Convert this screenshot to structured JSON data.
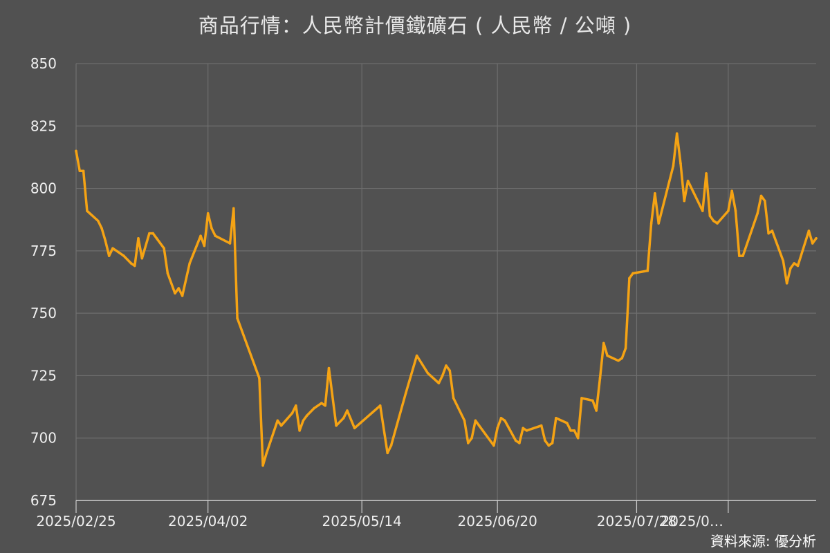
{
  "chart_data": {
    "type": "line",
    "title": "商品行情：人民幣計價鐵礦石 ( 人民幣 / 公噸 )",
    "source": "資料來源: 優分析",
    "ylim": [
      675,
      850
    ],
    "yticks": [
      675,
      700,
      725,
      750,
      775,
      800,
      825,
      850
    ],
    "xticks": [
      "2025/02/25",
      "2025/04/02",
      "2025/05/14",
      "2025/06/20",
      "2025/07/28",
      "2025/0…"
    ],
    "xtick_dates": [
      "2025-02-25",
      "2025-04-02",
      "2025-05-14",
      "2025-06-20",
      "2025-07-28",
      "2025-08-22"
    ],
    "grid": true,
    "line_color": "#f5a314",
    "series": [
      {
        "name": "",
        "points": [
          [
            "2025-02-25",
            815
          ],
          [
            "2025-02-26",
            807
          ],
          [
            "2025-02-27",
            807
          ],
          [
            "2025-02-28",
            791
          ],
          [
            "2025-03-03",
            787
          ],
          [
            "2025-03-04",
            784
          ],
          [
            "2025-03-05",
            779
          ],
          [
            "2025-03-06",
            773
          ],
          [
            "2025-03-07",
            776
          ],
          [
            "2025-03-10",
            773
          ],
          [
            "2025-03-12",
            770
          ],
          [
            "2025-03-13",
            769
          ],
          [
            "2025-03-14",
            780
          ],
          [
            "2025-03-15",
            772
          ],
          [
            "2025-03-17",
            782
          ],
          [
            "2025-03-18",
            782
          ],
          [
            "2025-03-19",
            780
          ],
          [
            "2025-03-21",
            776
          ],
          [
            "2025-03-22",
            766
          ],
          [
            "2025-03-24",
            758
          ],
          [
            "2025-03-25",
            760
          ],
          [
            "2025-03-26",
            757
          ],
          [
            "2025-03-28",
            770
          ],
          [
            "2025-03-31",
            781
          ],
          [
            "2025-04-01",
            777
          ],
          [
            "2025-04-02",
            790
          ],
          [
            "2025-04-03",
            784
          ],
          [
            "2025-04-04",
            781
          ],
          [
            "2025-04-08",
            778
          ],
          [
            "2025-04-09",
            792
          ],
          [
            "2025-04-10",
            748
          ],
          [
            "2025-04-16",
            724
          ],
          [
            "2025-04-17",
            689
          ],
          [
            "2025-04-18",
            694
          ],
          [
            "2025-04-21",
            707
          ],
          [
            "2025-04-22",
            705
          ],
          [
            "2025-04-25",
            710
          ],
          [
            "2025-04-26",
            713
          ],
          [
            "2025-04-27",
            703
          ],
          [
            "2025-04-28",
            707
          ],
          [
            "2025-04-29",
            709
          ],
          [
            "2025-05-01",
            712
          ],
          [
            "2025-05-03",
            714
          ],
          [
            "2025-05-04",
            713
          ],
          [
            "2025-05-05",
            728
          ],
          [
            "2025-05-07",
            705
          ],
          [
            "2025-05-09",
            708
          ],
          [
            "2025-05-10",
            711
          ],
          [
            "2025-05-12",
            704
          ],
          [
            "2025-05-19",
            713
          ],
          [
            "2025-05-21",
            694
          ],
          [
            "2025-05-22",
            697
          ],
          [
            "2025-05-26",
            718
          ],
          [
            "2025-05-29",
            733
          ],
          [
            "2025-06-01",
            726
          ],
          [
            "2025-06-04",
            722
          ],
          [
            "2025-06-05",
            725
          ],
          [
            "2025-06-06",
            729
          ],
          [
            "2025-06-07",
            727
          ],
          [
            "2025-06-08",
            716
          ],
          [
            "2025-06-11",
            707
          ],
          [
            "2025-06-12",
            698
          ],
          [
            "2025-06-13",
            700
          ],
          [
            "2025-06-14",
            707
          ],
          [
            "2025-06-15",
            705
          ],
          [
            "2025-06-19",
            697
          ],
          [
            "2025-06-20",
            704
          ],
          [
            "2025-06-21",
            708
          ],
          [
            "2025-06-22",
            707
          ],
          [
            "2025-06-25",
            699
          ],
          [
            "2025-06-26",
            698
          ],
          [
            "2025-06-27",
            704
          ],
          [
            "2025-06-28",
            703
          ],
          [
            "2025-07-02",
            705
          ],
          [
            "2025-07-03",
            699
          ],
          [
            "2025-07-04",
            697
          ],
          [
            "2025-07-05",
            698
          ],
          [
            "2025-07-06",
            708
          ],
          [
            "2025-07-09",
            706
          ],
          [
            "2025-07-10",
            703
          ],
          [
            "2025-07-11",
            703
          ],
          [
            "2025-07-12",
            700
          ],
          [
            "2025-07-13",
            716
          ],
          [
            "2025-07-16",
            715
          ],
          [
            "2025-07-17",
            711
          ],
          [
            "2025-07-18",
            724
          ],
          [
            "2025-07-19",
            738
          ],
          [
            "2025-07-20",
            733
          ],
          [
            "2025-07-23",
            731
          ],
          [
            "2025-07-24",
            732
          ],
          [
            "2025-07-25",
            736
          ],
          [
            "2025-07-26",
            764
          ],
          [
            "2025-07-27",
            766
          ],
          [
            "2025-07-31",
            767
          ],
          [
            "2025-08-01",
            786
          ],
          [
            "2025-08-02",
            798
          ],
          [
            "2025-08-03",
            786
          ],
          [
            "2025-08-07",
            809
          ],
          [
            "2025-08-08",
            822
          ],
          [
            "2025-08-09",
            810
          ],
          [
            "2025-08-10",
            795
          ],
          [
            "2025-08-11",
            803
          ],
          [
            "2025-08-15",
            791
          ],
          [
            "2025-08-16",
            806
          ],
          [
            "2025-08-17",
            789
          ],
          [
            "2025-08-18",
            787
          ],
          [
            "2025-08-19",
            786
          ],
          [
            "2025-08-22",
            791
          ],
          [
            "2025-08-23",
            799
          ],
          [
            "2025-08-24",
            791
          ],
          [
            "2025-08-25",
            773
          ],
          [
            "2025-08-26",
            773
          ],
          [
            "2025-08-30",
            790
          ],
          [
            "2025-08-31",
            797
          ],
          [
            "2025-09-01",
            795
          ],
          [
            "2025-09-02",
            782
          ],
          [
            "2025-09-03",
            783
          ],
          [
            "2025-09-06",
            771
          ],
          [
            "2025-09-07",
            762
          ],
          [
            "2025-09-08",
            768
          ],
          [
            "2025-09-09",
            770
          ],
          [
            "2025-09-10",
            769
          ],
          [
            "2025-09-13",
            783
          ],
          [
            "2025-09-14",
            778
          ],
          [
            "2025-09-15",
            780
          ]
        ]
      }
    ]
  }
}
